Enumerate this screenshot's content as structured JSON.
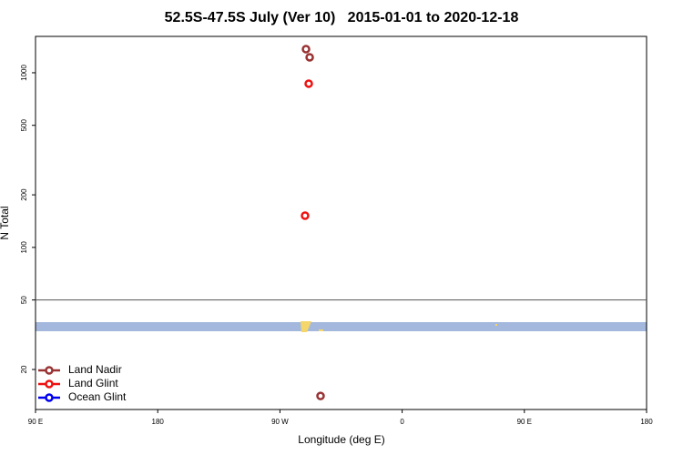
{
  "chart_data": {
    "type": "scatter",
    "title": "52.5S-47.5S July (Ver 10)   2015-01-01 to 2020-12-18",
    "xlabel": "Longitude (deg E)",
    "ylabel": "N Total",
    "xlim": [
      -270,
      180
    ],
    "xticks": [
      {
        "value": -270,
        "label": "90 E"
      },
      {
        "value": -180,
        "label": "180"
      },
      {
        "value": -90,
        "label": "90 W"
      },
      0,
      {
        "value": 90,
        "label": "90 E"
      },
      180
    ],
    "ylim": [
      11.8,
      1615
    ],
    "ylog": true,
    "yticks": [
      20,
      50,
      100,
      200,
      500,
      1000
    ],
    "hline": 50,
    "legend": "lower left",
    "series": [
      {
        "name": "Land Nadir",
        "color": "#993333",
        "x": [
          -70.8,
          -68.1,
          -60.1
        ],
        "values": [
          1365,
          1226,
          14.1
        ]
      },
      {
        "name": "Land Glint",
        "color": "#ee1111",
        "x": [
          -68.8,
          -71.5
        ],
        "values": [
          866,
          152
        ]
      },
      {
        "name": "Ocean Glint",
        "color": "#0000ee",
        "x": [],
        "values": []
      }
    ]
  }
}
